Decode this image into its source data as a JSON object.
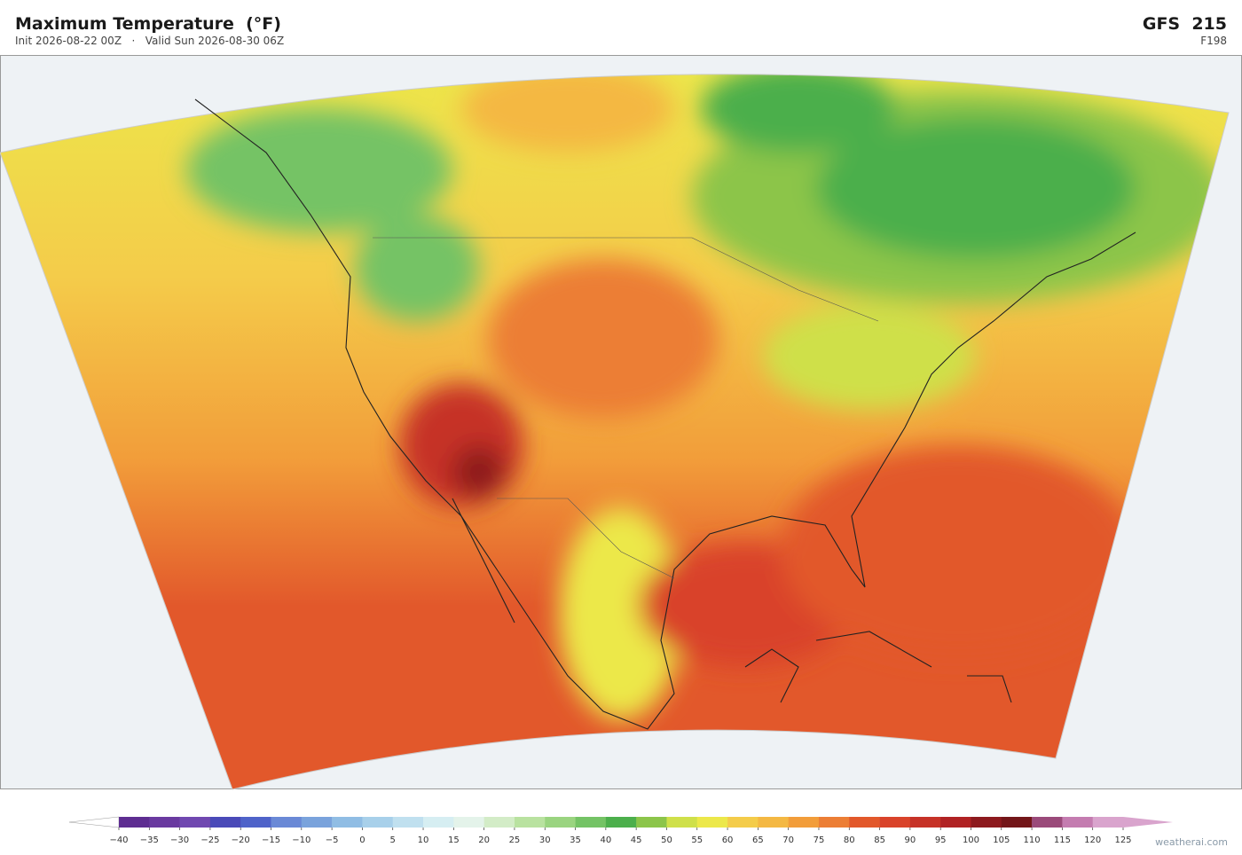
{
  "header": {
    "title": "Maximum Temperature  (°F)",
    "subtitle": "Init 2026-08-22 00Z   ·   Valid Sun 2026-08-30 06Z",
    "model": "GFS  215",
    "forecast_hour": "F198"
  },
  "colorbar": {
    "ticks": [
      {
        "value": -40,
        "label": "−40"
      },
      {
        "value": -35,
        "label": "−35"
      },
      {
        "value": -30,
        "label": "−30"
      },
      {
        "value": -25,
        "label": "−25"
      },
      {
        "value": -20,
        "label": "−20"
      },
      {
        "value": -15,
        "label": "−15"
      },
      {
        "value": -10,
        "label": "−10"
      },
      {
        "value": -5,
        "label": "−5"
      },
      0,
      5,
      10,
      15,
      20,
      25,
      30,
      35,
      40,
      45,
      50,
      55,
      60,
      65,
      70,
      75,
      80,
      85,
      90,
      95,
      100,
      105,
      110,
      115,
      120,
      125
    ],
    "colors": [
      "#5e2d91",
      "#6a3aa0",
      "#7048b0",
      "#4a4ab8",
      "#4f63c9",
      "#6a89d6",
      "#7aa3dc",
      "#90bde4",
      "#a8d0ea",
      "#c0e0ef",
      "#d6eef2",
      "#e4f3ea",
      "#d3ecc7",
      "#b9e2a0",
      "#9ad480",
      "#74c365",
      "#4caf4c",
      "#8cc54a",
      "#cfe04a",
      "#ece84a",
      "#f4cc4a",
      "#f4b843",
      "#f29d3a",
      "#ec7e35",
      "#e2582b",
      "#d9432a",
      "#c63227",
      "#b02223",
      "#8d1a1e",
      "#731619",
      "#9a4a7a",
      "#c47cb0",
      "#d9a4cd"
    ],
    "under_color": "#ffffff",
    "over_color": "#d9a4cd"
  },
  "watermark": "weatherai.com"
}
